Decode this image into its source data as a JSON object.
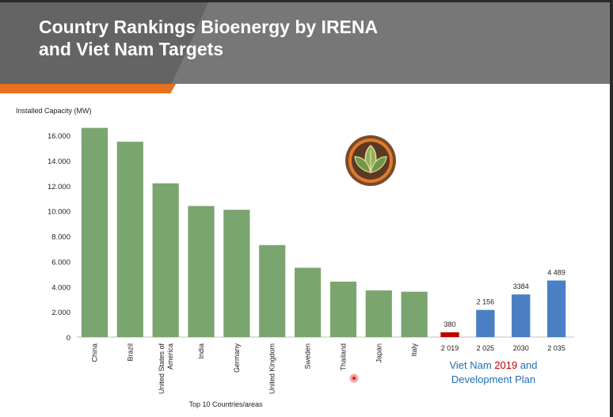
{
  "slide": {
    "title_line1": "Country Rankings Bioenergy by IRENA",
    "title_line2": "and Viet Nam Targets"
  },
  "chart_data": {
    "type": "bar",
    "ylabel": "Installed Capacity (MW)",
    "xlabel": "Top 10 Countries/areas",
    "ylim": [
      0,
      16700
    ],
    "yticks": [
      0,
      2000,
      4000,
      6000,
      8000,
      10000,
      12000,
      14000,
      16000
    ],
    "ytick_labels": [
      "0",
      "2.000",
      "4.000",
      "6.000",
      "8.000",
      "10.000",
      "12.000",
      "14.000",
      "16.000"
    ],
    "grid": false,
    "series": [
      {
        "categories": [
          "China",
          "Brazil",
          "United States of America",
          "India",
          "Germany",
          "United Kingdom",
          "Sweden",
          "Thailand",
          "Japan",
          "Italy"
        ],
        "values": [
          16600,
          15500,
          12200,
          10400,
          10100,
          7300,
          5500,
          4400,
          3700,
          3600
        ],
        "color": "#7aa56e"
      },
      {
        "categories": [
          "2 019"
        ],
        "values": [
          380
        ],
        "data_labels": [
          "380"
        ],
        "color": "#c00000"
      },
      {
        "categories": [
          "2 025",
          "2030",
          "2 035"
        ],
        "values": [
          2156,
          3384,
          4489
        ],
        "data_labels": [
          "2 156",
          "3384",
          "4 489"
        ],
        "color": "#4a7fc4"
      }
    ],
    "annotation": {
      "line1_a": "Viet Nam ",
      "line1_year": "2019",
      "line1_b": " and",
      "line2": "Development Plan"
    }
  }
}
